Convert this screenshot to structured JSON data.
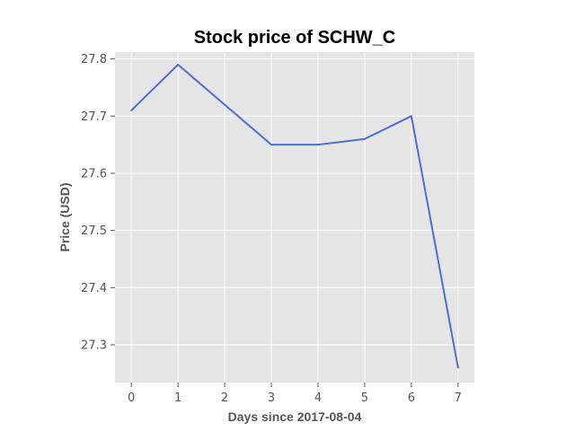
{
  "chart_data": {
    "type": "line",
    "title": "Stock price of SCHW_C",
    "xlabel": "Days since 2017-08-04",
    "ylabel": "Price (USD)",
    "x": [
      0,
      1,
      2,
      3,
      4,
      5,
      6,
      7
    ],
    "series": [
      {
        "values": [
          27.71,
          27.79,
          27.72,
          27.65,
          27.65,
          27.66,
          27.7,
          27.26
        ]
      }
    ],
    "xticks": [
      "0",
      "1",
      "2",
      "3",
      "4",
      "5",
      "6",
      "7"
    ],
    "yticks": [
      "27.3",
      "27.4",
      "27.5",
      "27.6",
      "27.7",
      "27.8"
    ],
    "xlim": [
      -0.35,
      7.35
    ],
    "ylim": [
      27.234,
      27.812
    ],
    "grid": true,
    "colors": {
      "line": "#4c6fd6",
      "plot_bg": "#e5e5e5",
      "grid": "#ffffff"
    }
  }
}
